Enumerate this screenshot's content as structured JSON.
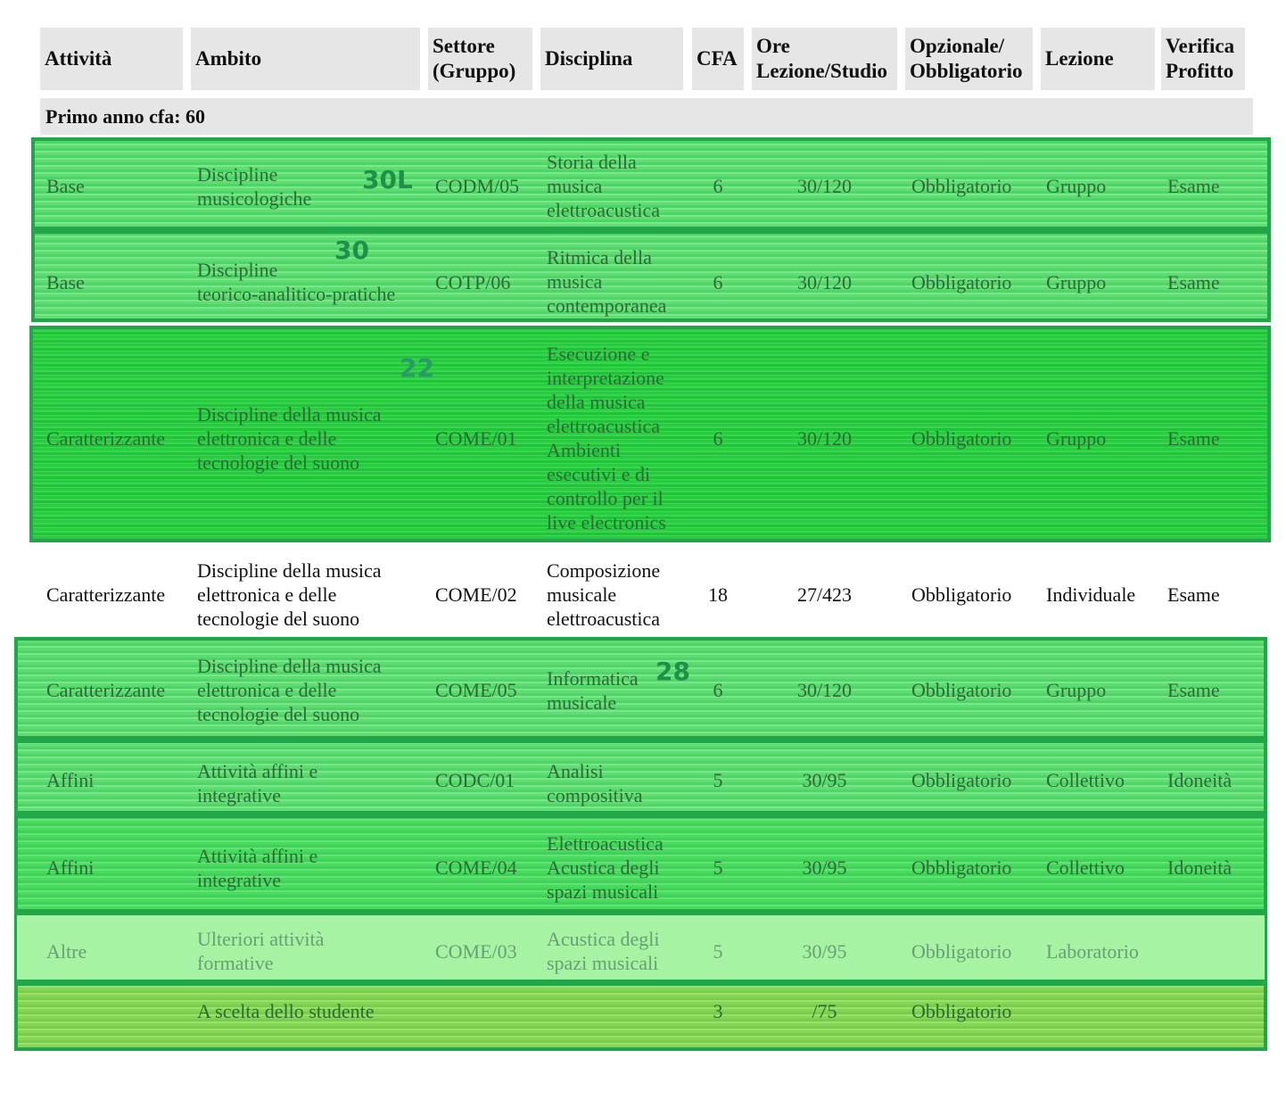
{
  "headers": [
    "Attività",
    "Ambito",
    "Settore (Gruppo)",
    "Disciplina",
    "CFA",
    "Ore Lezione/Studio",
    "Opzionale/ Obbligatorio",
    "Lezione",
    "Verifica Profitto"
  ],
  "header_lines": {
    "settore": [
      "Settore",
      "(Gruppo)"
    ],
    "ore": [
      "Ore",
      "Lezione/Studio"
    ],
    "opzionale": [
      "Opzionale/",
      "Obbligatorio"
    ],
    "verifica": [
      "Verifica",
      "Profitto"
    ]
  },
  "section": "Primo anno cfa: 60",
  "rows": [
    {
      "attivita": "Base",
      "ambito": [
        "Discipline",
        "musicologiche"
      ],
      "settore": "CODM/05",
      "disciplina": [
        "Storia della",
        "musica",
        "elettroacustica"
      ],
      "cfa": "6",
      "ore": "30/120",
      "opz": "Obbligatorio",
      "lezione": "Gruppo",
      "verifica": "Esame",
      "note": "30L"
    },
    {
      "attivita": "Base",
      "ambito": [
        "Discipline",
        "teorico-analitico-pratiche"
      ],
      "settore": "COTP/06",
      "disciplina": [
        "Ritmica della",
        "musica",
        "contemporanea"
      ],
      "cfa": "6",
      "ore": "30/120",
      "opz": "Obbligatorio",
      "lezione": "Gruppo",
      "verifica": "Esame",
      "note": "30"
    },
    {
      "attivita": "Caratterizzante",
      "ambito": [
        "Discipline della musica",
        "elettronica e delle",
        "tecnologie del suono"
      ],
      "settore": "COME/01",
      "disciplina": [
        "Esecuzione e",
        "interpretazione",
        "della musica",
        "elettroacustica",
        "Ambienti",
        "esecutivi e di",
        "controllo per il",
        "live electronics"
      ],
      "cfa": "6",
      "ore": "30/120",
      "opz": "Obbligatorio",
      "lezione": "Gruppo",
      "verifica": "Esame",
      "note": "22"
    },
    {
      "attivita": "Caratterizzante",
      "ambito": [
        "Discipline della musica",
        "elettronica e delle",
        "tecnologie del suono"
      ],
      "settore": "COME/02",
      "disciplina": [
        "Composizione",
        "musicale",
        "elettroacustica"
      ],
      "cfa": "18",
      "ore": "27/423",
      "opz": "Obbligatorio",
      "lezione": "Individuale",
      "verifica": "Esame"
    },
    {
      "attivita": "Caratterizzante",
      "ambito": [
        "Discipline della musica",
        "elettronica e delle",
        "tecnologie del suono"
      ],
      "settore": "COME/05",
      "disciplina": [
        "Informatica",
        "musicale"
      ],
      "cfa": "6",
      "ore": "30/120",
      "opz": "Obbligatorio",
      "lezione": "Gruppo",
      "verifica": "Esame",
      "note": "28"
    },
    {
      "attivita": "Affini",
      "ambito": [
        "Attività affini e",
        "integrative"
      ],
      "settore": "CODC/01",
      "disciplina": [
        "Analisi",
        "compositiva"
      ],
      "cfa": "5",
      "ore": "30/95",
      "opz": "Obbligatorio",
      "lezione": "Collettivo",
      "verifica": "Idoneità"
    },
    {
      "attivita": "Affini",
      "ambito": [
        "Attività affini e",
        "integrative"
      ],
      "settore": "COME/04",
      "disciplina": [
        "Elettroacustica",
        "Acustica degli",
        "spazi musicali"
      ],
      "cfa": "5",
      "ore": "30/95",
      "opz": "Obbligatorio",
      "lezione": "Collettivo",
      "verifica": "Idoneità"
    },
    {
      "attivita": "Altre",
      "ambito": [
        "Ulteriori attività",
        "formative"
      ],
      "settore": "COME/03",
      "disciplina": [
        "Acustica degli",
        "spazi musicali"
      ],
      "cfa": "5",
      "ore": "30/95",
      "opz": "Obbligatorio",
      "lezione": "Laboratorio",
      "verifica": ""
    },
    {
      "attivita": "",
      "ambito": [
        "A scelta dello studente"
      ],
      "settore": "",
      "disciplina": [],
      "cfa": "3",
      "ore": "/75",
      "opz": "Obbligatorio",
      "lezione": "",
      "verifica": ""
    }
  ]
}
